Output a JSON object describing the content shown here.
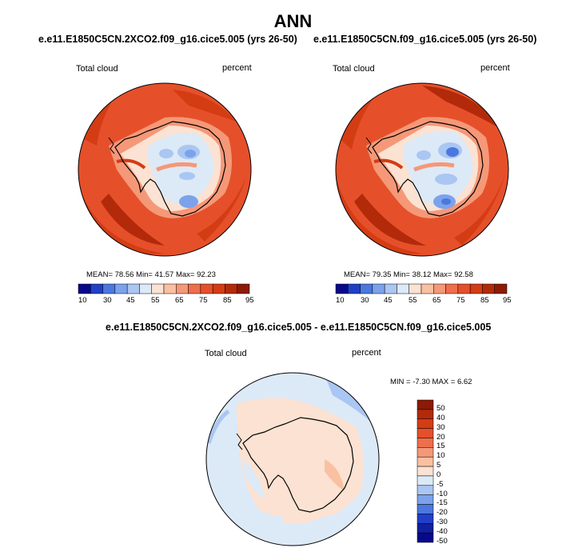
{
  "title": "ANN",
  "panels": [
    {
      "case_title": "e.e11.E1850C5CN.2XCO2.f09_g16.cice5.005 (yrs 26-50)",
      "variable": "Total cloud",
      "units": "percent",
      "stats": "MEAN=  78.56  Min=  41.57  Max=  92.23",
      "colorbar_labels": [
        "10",
        "30",
        "45",
        "55",
        "65",
        "75",
        "85",
        "95"
      ]
    },
    {
      "case_title": "e.e11.E1850C5CN.f09_g16.cice5.005 (yrs 26-50)",
      "variable": "Total cloud",
      "units": "percent",
      "stats": "MEAN=  79.35  Min=  38.12  Max=  92.58",
      "colorbar_labels": [
        "10",
        "30",
        "45",
        "55",
        "65",
        "75",
        "85",
        "95"
      ]
    }
  ],
  "diff": {
    "title": "e.e11.E1850C5CN.2XCO2.f09_g16.cice5.005 - e.e11.E1850C5CN.f09_g16.cice5.005",
    "variable": "Total cloud",
    "units": "percent",
    "stats": "MIN =  -7.30  MAX =   6.62",
    "colorbar_labels": [
      "50",
      "40",
      "30",
      "20",
      "15",
      "10",
      "5",
      "0",
      "-5",
      "-10",
      "-15",
      "-20",
      "-30",
      "-40",
      "-50"
    ]
  },
  "colors": {
    "abs_colorbar": [
      "#08088a",
      "#2040c8",
      "#4a78e0",
      "#7ca2ec",
      "#aac6f2",
      "#dce9f7",
      "#fbe2d2",
      "#f9c0a2",
      "#f59878",
      "#ef6e4c",
      "#e5502a",
      "#d43c14",
      "#b32a0a",
      "#8c1a04"
    ],
    "diff_colorbar": [
      "#8c1a04",
      "#b32a0a",
      "#d43c14",
      "#e5502a",
      "#ef6e4c",
      "#f59878",
      "#f9c0a2",
      "#fbe2d2",
      "#dce9f7",
      "#aac6f2",
      "#7ca2ec",
      "#4a78e0",
      "#2040c8",
      "#1020a0",
      "#08088a"
    ]
  }
}
